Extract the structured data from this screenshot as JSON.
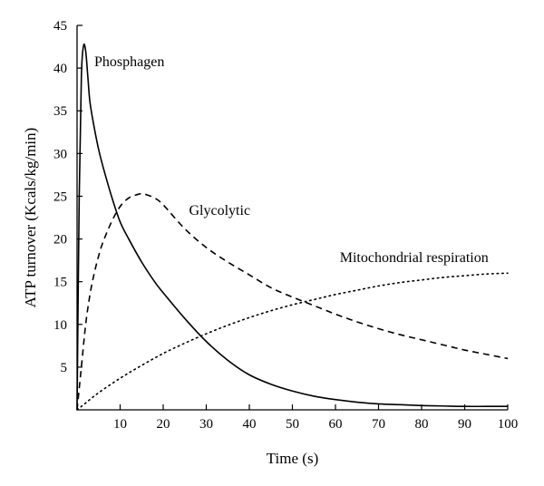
{
  "chart_data": {
    "type": "line",
    "title": "",
    "xlabel": "Time (s)",
    "ylabel": "ATP turnover (Kcals/kg/min)",
    "xlim": [
      0,
      100
    ],
    "ylim": [
      0,
      45
    ],
    "xticks": [
      10,
      20,
      30,
      40,
      50,
      60,
      70,
      80,
      90,
      100
    ],
    "yticks": [
      5,
      10,
      15,
      20,
      25,
      30,
      35,
      40,
      45
    ],
    "grid": false,
    "legend": "none",
    "series": [
      {
        "name": "Phosphagen",
        "style": "solid",
        "x": [
          0,
          0.5,
          1,
          1.5,
          2,
          2.5,
          3,
          4,
          5,
          6,
          8,
          10,
          12,
          15,
          18,
          20,
          25,
          30,
          35,
          40,
          45,
          50,
          55,
          60,
          65,
          70,
          75,
          80,
          85,
          90,
          95,
          100
        ],
        "y": [
          0,
          25,
          39,
          42.6,
          42,
          39,
          36,
          33,
          30.5,
          28.5,
          25,
          22,
          20,
          17.3,
          15,
          13.7,
          10.7,
          8,
          5.8,
          4.1,
          3,
          2.2,
          1.6,
          1.2,
          0.9,
          0.7,
          0.6,
          0.5,
          0.45,
          0.4,
          0.4,
          0.4
        ]
      },
      {
        "name": "Glycolytic",
        "style": "dashed",
        "x": [
          0,
          1,
          2,
          3,
          4,
          5,
          6,
          8,
          10,
          12,
          14,
          15,
          16,
          18,
          20,
          25,
          30,
          35,
          40,
          45,
          50,
          55,
          60,
          65,
          70,
          75,
          80,
          85,
          90,
          95,
          100
        ],
        "y": [
          0,
          5,
          10,
          13.5,
          16,
          18,
          19.6,
          22,
          23.8,
          24.8,
          25.2,
          25.3,
          25.2,
          24.8,
          24,
          21.2,
          19,
          17.3,
          15.8,
          14.3,
          13.2,
          12.2,
          11.2,
          10.3,
          9.5,
          8.8,
          8.2,
          7.6,
          7,
          6.5,
          6
        ]
      },
      {
        "name": "Mitochondrial respiration",
        "style": "dotted",
        "x": [
          0,
          2,
          5,
          10,
          15,
          20,
          25,
          30,
          35,
          40,
          45,
          50,
          55,
          60,
          65,
          70,
          75,
          80,
          85,
          90,
          95,
          100
        ],
        "y": [
          0,
          0.8,
          2,
          3.7,
          5.2,
          6.6,
          7.8,
          8.9,
          9.9,
          10.8,
          11.6,
          12.3,
          12.9,
          13.5,
          14,
          14.5,
          14.9,
          15.2,
          15.5,
          15.7,
          15.9,
          16
        ]
      }
    ],
    "labels": [
      {
        "text": "Phosphagen",
        "x": 4,
        "y": 40.2
      },
      {
        "text": "Glycolytic",
        "x": 26,
        "y": 22.8
      },
      {
        "text": "Mitochondrial respiration",
        "x": 61,
        "y": 17.3
      }
    ]
  }
}
